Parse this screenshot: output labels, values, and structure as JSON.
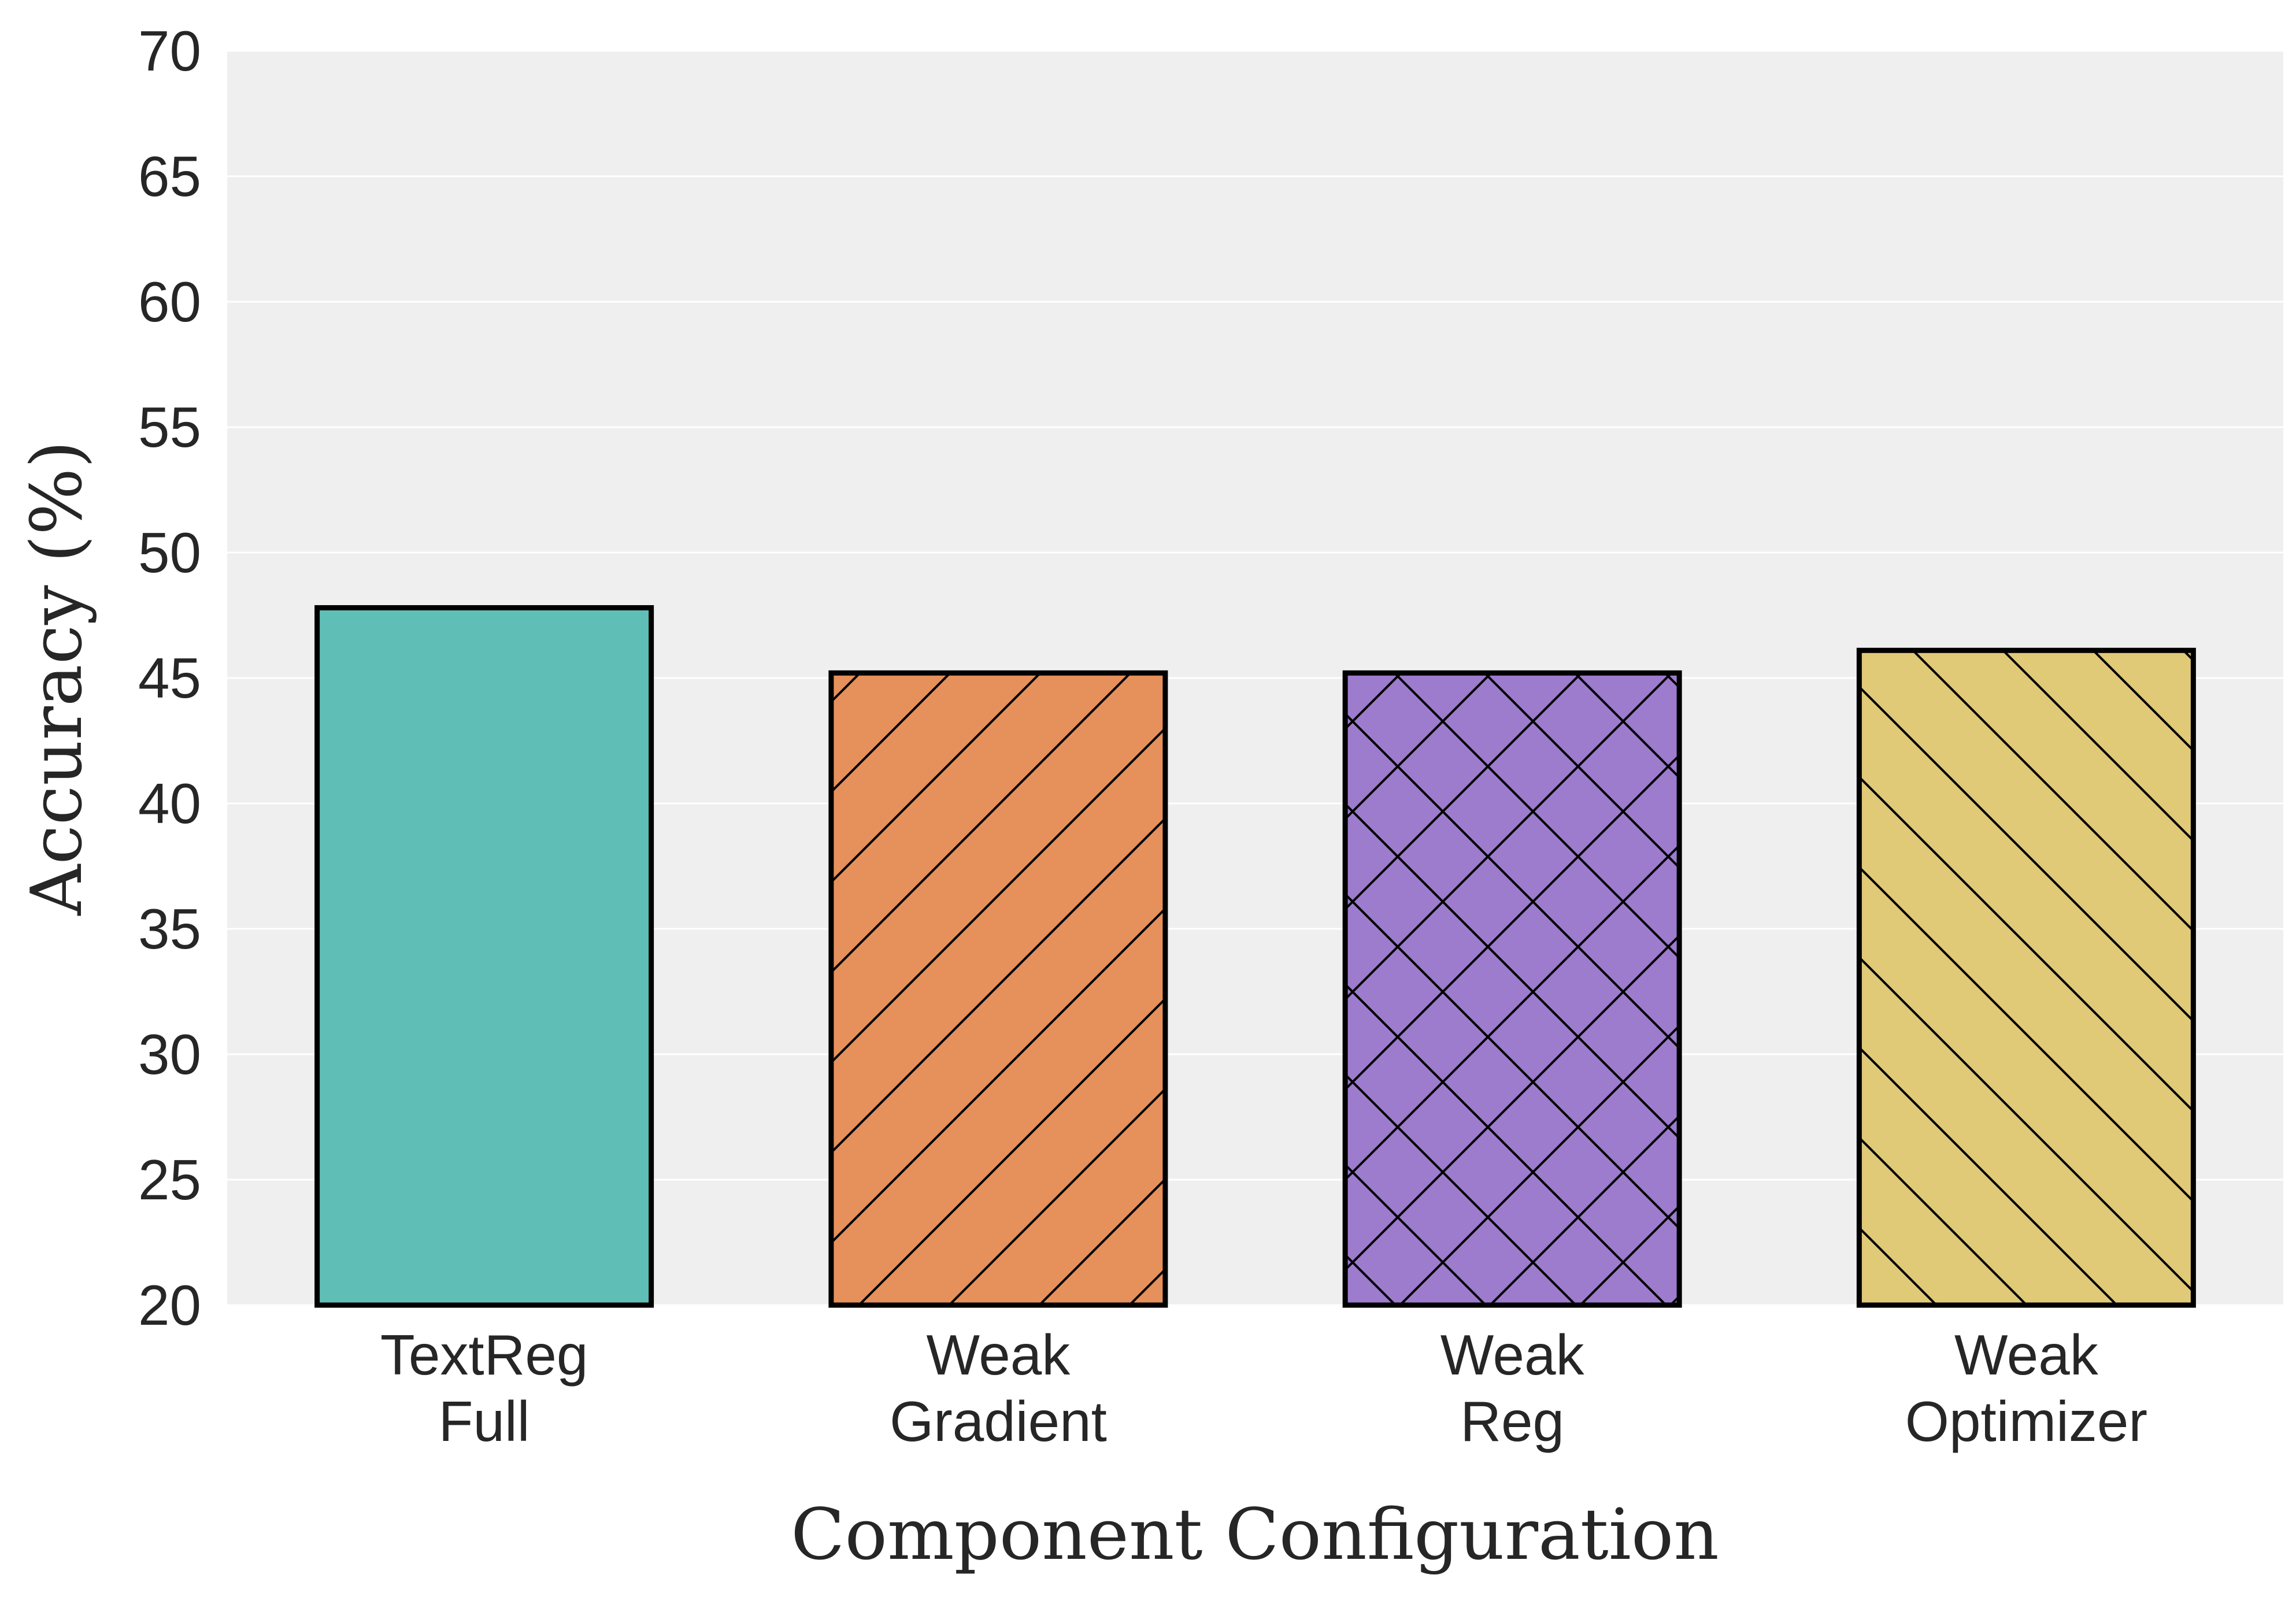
{
  "chart_data": {
    "type": "bar",
    "title": "",
    "xlabel": "Component Configuration",
    "ylabel": "Accuracy (%)",
    "ylim": [
      20,
      70
    ],
    "yticks": [
      20,
      25,
      30,
      35,
      40,
      45,
      50,
      55,
      60,
      65,
      70
    ],
    "grid": true,
    "categories": [
      [
        "TextReg",
        "Full"
      ],
      [
        "Weak",
        "Gradient"
      ],
      [
        "Weak",
        "Reg"
      ],
      [
        "Weak",
        "Optimizer"
      ]
    ],
    "values": [
      47.8,
      45.2,
      45.2,
      46.1
    ],
    "colors": [
      "#5fbfb6",
      "#e6905b",
      "#9d7bcd",
      "#e0c977"
    ],
    "hatches": [
      "none",
      "forward-diagonal",
      "crosshatch",
      "back-diagonal"
    ],
    "edge_color": "#000000",
    "background_color": "#efefef"
  }
}
